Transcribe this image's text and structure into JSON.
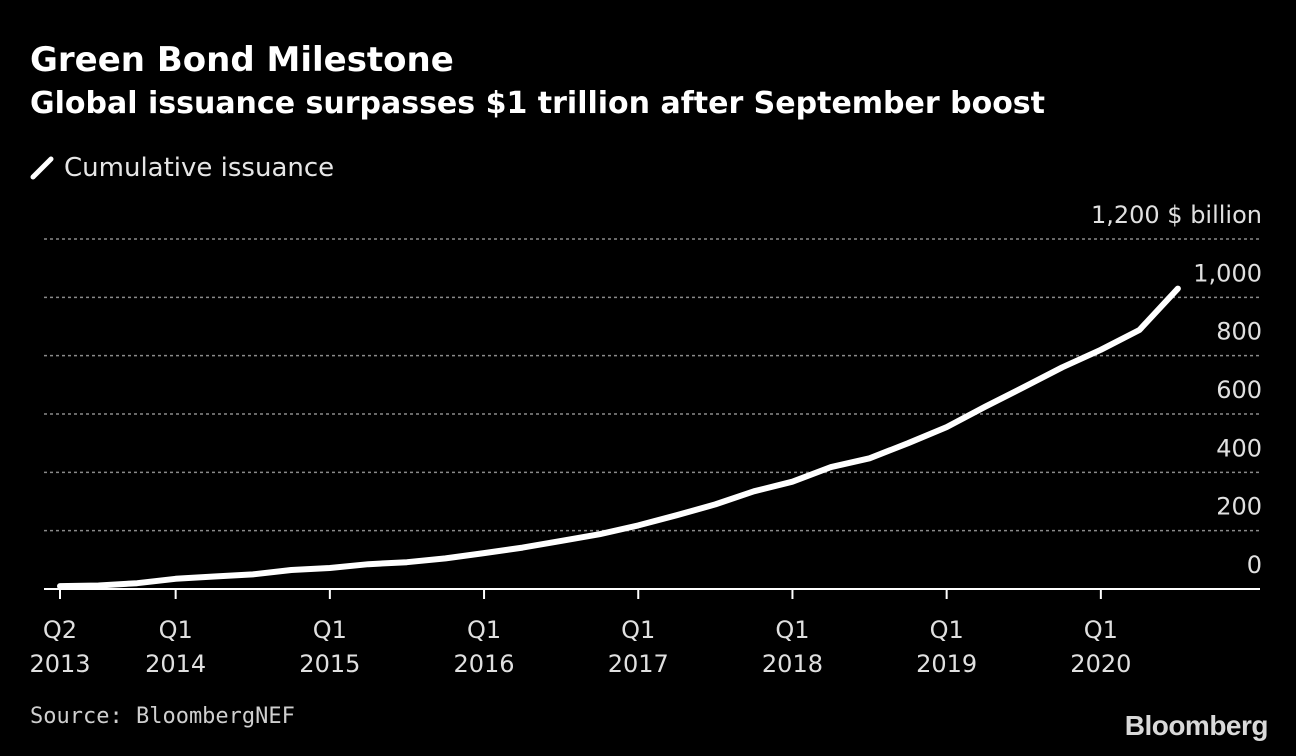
{
  "chart_data": {
    "type": "line",
    "title": "Green Bond Milestone",
    "subtitle": "Global issuance surpasses $1 trillion after September boost",
    "legend": [
      "Cumulative issuance"
    ],
    "ylabel": "$ billion",
    "ylim": [
      0,
      1200
    ],
    "yticks": [
      0,
      200,
      400,
      600,
      800,
      1000,
      1200
    ],
    "ytick_labels": [
      "0",
      "200",
      "400",
      "600",
      "800",
      "1,000",
      "1,200"
    ],
    "xticks": [
      {
        "top": "Q2",
        "bottom": "2013",
        "pos": 0
      },
      {
        "top": "Q1",
        "bottom": "2014",
        "pos": 3
      },
      {
        "top": "Q1",
        "bottom": "2015",
        "pos": 7
      },
      {
        "top": "Q1",
        "bottom": "2016",
        "pos": 11
      },
      {
        "top": "Q1",
        "bottom": "2017",
        "pos": 15
      },
      {
        "top": "Q1",
        "bottom": "2018",
        "pos": 19
      },
      {
        "top": "Q1",
        "bottom": "2019",
        "pos": 23
      },
      {
        "top": "Q1",
        "bottom": "2020",
        "pos": 27
      }
    ],
    "series": [
      {
        "name": "Cumulative issuance",
        "x": [
          0,
          1,
          2,
          3,
          4,
          5,
          6,
          7,
          8,
          9,
          10,
          11,
          12,
          13,
          14,
          15,
          16,
          17,
          18,
          19,
          20,
          21,
          22,
          23,
          24,
          25,
          26,
          27,
          28,
          29
        ],
        "values": [
          10,
          12,
          20,
          35,
          43,
          50,
          65,
          72,
          85,
          92,
          105,
          123,
          142,
          165,
          188,
          218,
          253,
          290,
          335,
          368,
          418,
          448,
          500,
          555,
          625,
          692,
          760,
          820,
          888,
          1030
        ]
      }
    ],
    "color": "#ffffff",
    "grid": true
  },
  "source": "Source: BloombergNEF",
  "brand": "Bloomberg"
}
